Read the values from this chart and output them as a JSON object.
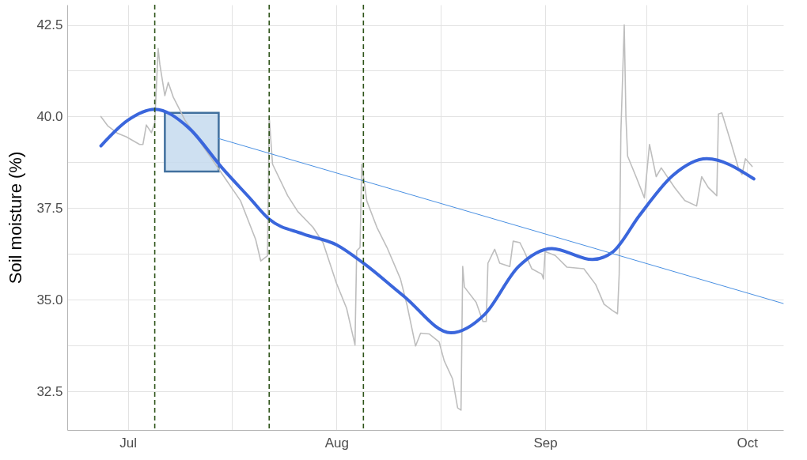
{
  "chart_data": {
    "type": "line",
    "ylabel": "Soil moisture (%)",
    "xlim": [
      "--06-22",
      "--10-06T09:00"
    ],
    "xticks": [
      {
        "value": "--07-01",
        "label": "Jul"
      },
      {
        "value": "--07-16T12:00",
        "label": null
      },
      {
        "value": "--08-01",
        "label": "Aug"
      },
      {
        "value": "--08-16T12:00",
        "label": null
      },
      {
        "value": "--09-01",
        "label": "Sep"
      },
      {
        "value": "--09-16",
        "label": null
      },
      {
        "value": "--10-01",
        "label": "Oct"
      }
    ],
    "ylim": [
      31.45,
      43.05
    ],
    "yticks": [
      32.5,
      {
        "value": 33.75,
        "label": null
      },
      {
        "value": 35,
        "label": "35.0"
      },
      {
        "value": 36.25,
        "label": null
      },
      37.5,
      {
        "value": 38.75,
        "label": null
      },
      {
        "value": 40,
        "label": "40.0"
      },
      {
        "value": 41.25,
        "label": null
      },
      42.5
    ],
    "grid": true,
    "line_style": "solid",
    "marker": "none",
    "series": [
      {
        "color": "#bebebe",
        "x": [
          "--06-27",
          "--06-28",
          "--06-29T12:00",
          "--06-30T18:00",
          "--07-02T18:00",
          "--07-03T06:00",
          "--07-03T18:00",
          "--07-04T12:00",
          "--07-05",
          "--07-05T12:00",
          "--07-05T18:00",
          "--07-06T12:00",
          "--07-07",
          "--07-07T18:00",
          "--07-09T12:00",
          "--07-14T12:00",
          "--07-17T18:00",
          "--07-20",
          "--07-20T18:00",
          "--07-21T18:00",
          "--07-22",
          "--07-22T12:00",
          "--07-24T18:00",
          "--07-26T06:00",
          "--07-28T12:00",
          "--07-30",
          "--08-01",
          "--08-02T12:00",
          "--08-03T18:00",
          "--08-04",
          "--08-04T12:00",
          "--08-04T18:00",
          "--08-05T12:00",
          "--08-07",
          "--08-08T12:00",
          "--08-10T12:00",
          "--08-11T12:00",
          "--08-12T18:00",
          "--08-13T12:00",
          "--08-14T18:00",
          "--08-16T06:00",
          "--08-17",
          "--08-18T06:00",
          "--08-19",
          "--08-19T12:00",
          "--08-19T18:00",
          "--08-20",
          "--08-21T18:00",
          "--08-22T18:00",
          "--08-23T06:00",
          "--08-23T12:00",
          "--08-24T12:00",
          "--08-25T06:00",
          "--08-26T18:00",
          "--08-27T06:00",
          "--08-28T06:00",
          "--08-29",
          "--08-30",
          "--08-31T12:00",
          "--08-31T18:00",
          "--09-01",
          "--09-02T12:00",
          "--09-04T06:00",
          "--09-06T18:00",
          "--09-08T12:00",
          "--09-09T18:00",
          "--09-11",
          "--09-11T18:00",
          "--09-12",
          "--09-12T06:00",
          "--09-12T18:00",
          "--09-13",
          "--09-13T06:00",
          "--09-14T12:00",
          "--09-15T18:00",
          "--09-16T12:00",
          "--09-17T12:00",
          "--09-18T06:00",
          "--09-20T06:00",
          "--09-21T18:00",
          "--09-23T12:00",
          "--09-24T06:00",
          "--09-25T06:00",
          "--09-26T12:00",
          "--09-26T18:00",
          "--09-27T06:00",
          "--09-28T12:00",
          "--09-29T18:00",
          "--09-30T06:00",
          "--09-30T18:00",
          "--10-01T18:00"
        ],
        "values": [
          40.0,
          39.75,
          39.54,
          39.45,
          39.24,
          39.24,
          39.77,
          39.56,
          39.82,
          41.86,
          41.43,
          40.57,
          40.93,
          40.53,
          39.9,
          38.57,
          37.7,
          36.64,
          36.06,
          36.2,
          39.99,
          38.7,
          37.84,
          37.41,
          36.98,
          36.56,
          35.45,
          34.77,
          33.77,
          36.34,
          36.43,
          38.7,
          37.7,
          36.98,
          36.43,
          35.57,
          34.84,
          33.74,
          34.09,
          34.07,
          33.85,
          33.34,
          32.84,
          32.05,
          31.99,
          35.91,
          35.35,
          34.93,
          34.41,
          34.41,
          36.0,
          36.38,
          36.0,
          35.91,
          36.6,
          36.56,
          36.28,
          35.85,
          35.7,
          35.57,
          36.32,
          36.21,
          35.89,
          35.85,
          35.42,
          34.88,
          34.71,
          34.62,
          35.7,
          39.56,
          42.5,
          39.99,
          38.92,
          38.36,
          37.78,
          39.24,
          38.36,
          38.6,
          38.06,
          37.71,
          37.56,
          38.36,
          38.06,
          37.84,
          40.07,
          40.1,
          39.35,
          38.57,
          38.42,
          38.85,
          38.64
        ]
      },
      {
        "color": "#3a66dc",
        "x": [
          "--06-27",
          "--07-01",
          "--07-05",
          "--07-10",
          "--07-15",
          "--07-19",
          "--07-22",
          "--07-27",
          "--08-01",
          "--08-05",
          "--08-11",
          "--08-18",
          "--08-23",
          "--08-28",
          "--09-02",
          "--09-08",
          "--09-11",
          "--09-15",
          "--09-20",
          "--09-25",
          "--10-02"
        ],
        "values": [
          39.2,
          39.9,
          40.2,
          39.7,
          38.6,
          37.8,
          37.2,
          36.8,
          36.5,
          36.0,
          35.1,
          34.1,
          34.6,
          35.9,
          36.4,
          36.1,
          36.3,
          37.3,
          38.4,
          38.85,
          38.3
        ]
      },
      {
        "color": "#4a90e2",
        "x": [
          "--07-14T12:00",
          "--10-06T09:00"
        ],
        "values": [
          39.4,
          34.9
        ]
      }
    ],
    "ref_lines": [
      {
        "axis": "x",
        "value": "--07-05",
        "color": "#2e5419",
        "line_style": "dashed"
      },
      {
        "axis": "x",
        "value": "--07-22",
        "color": "#2e5419",
        "line_style": "dashed"
      },
      {
        "axis": "x",
        "value": "--08-05",
        "color": "#2e5419",
        "line_style": "dashed"
      }
    ]
  }
}
